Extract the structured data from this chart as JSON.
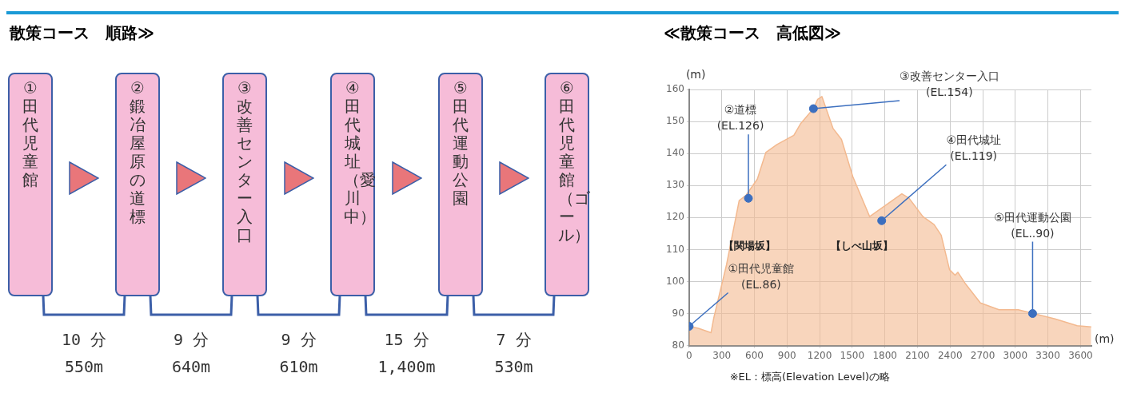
{
  "chart_data": [
    {
      "type": "other",
      "title": "散策コース　順路≫",
      "categories": [
        "①田代児童館",
        "②鍛冶屋原の道標",
        "③改善センター入口",
        "④田代城址（愛川中）",
        "⑤田代運動公園",
        "⑥田代児童館（ゴール）"
      ],
      "annotations": [
        "10 分",
        "550m",
        "9 分",
        "640m",
        "9 分",
        "610m",
        "15 分",
        "1,400m",
        "7 分",
        "530m"
      ]
    },
    {
      "type": "area",
      "title": "≪散策コース　高低図≫",
      "xlabel": "(m)",
      "ylabel": "(m)",
      "x": [
        0,
        85,
        201,
        227,
        344,
        460,
        524,
        627,
        705,
        808,
        963,
        1027,
        1143,
        1182,
        1221,
        1260,
        1324,
        1401,
        1505,
        1660,
        1956,
        2021,
        2150,
        2253,
        2318,
        2395,
        2446,
        2472,
        2537,
        2679,
        2850,
        3027,
        3366,
        3569,
        3698
      ],
      "series": [
        {
          "color": "#f3b98f",
          "values": [
            86,
            85.4,
            84,
            88.7,
            105.3,
            125.3,
            127,
            132,
            140.3,
            142.8,
            145.7,
            149.4,
            154,
            156.9,
            157.8,
            154,
            147.8,
            144.4,
            132.8,
            120.3,
            127.4,
            126.1,
            120.3,
            117.8,
            114.5,
            103.7,
            102,
            102.9,
            99.5,
            93.3,
            91.2,
            91.2,
            88.3,
            86.2,
            85.8
          ]
        },
        {
          "type": "scatter",
          "color": "#3c6fbf",
          "marker": "circle",
          "x": [
            0,
            545,
            1143,
            1771,
            3159
          ],
          "values": [
            86,
            126,
            154,
            119,
            90
          ]
        }
      ],
      "xlim": [
        0,
        3700
      ],
      "xticks": [
        0,
        300,
        600,
        900,
        1200,
        1500,
        1800,
        2100,
        2400,
        2700,
        3000,
        3300,
        3600
      ],
      "ylim": [
        80,
        160
      ],
      "yticks": [
        80,
        90,
        100,
        110,
        120,
        130,
        140,
        150,
        160
      ],
      "grid": true,
      "annotations": [
        {
          "text": "①田代児童館\n(EL.86)",
          "x": 0,
          "y": 86
        },
        {
          "text": "②道標\n(EL.126)",
          "x": 545,
          "y": 126
        },
        {
          "text": "③改善センター入口\n(EL.154)",
          "x": 1143,
          "y": 154
        },
        {
          "text": "④田代城址\n(EL.119)",
          "x": 1771,
          "y": 119
        },
        {
          "text": "⑤田代運動公園\n(EL..90)",
          "x": 3159,
          "y": 90
        },
        "【関場坂】",
        "【しべ山坂】",
        "※EL：標高(Elevation Level)の略"
      ]
    }
  ]
}
